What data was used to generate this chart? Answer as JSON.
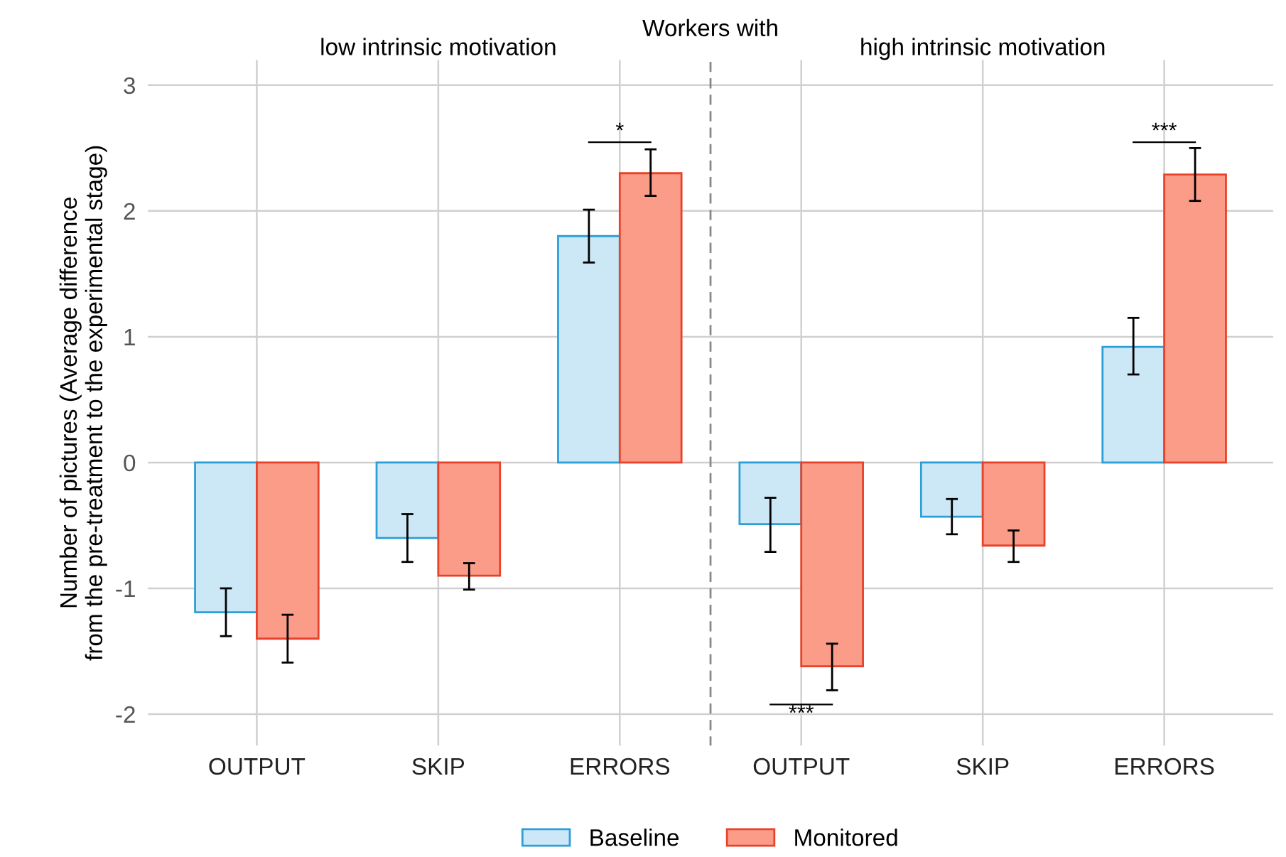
{
  "chart_data": {
    "type": "bar",
    "title": "Workers with",
    "ylabel": "Number of pictures (Average difference\nfrom the pre-treatment to the experimental stage)",
    "categories": [
      "OUTPUT",
      "SKIP",
      "ERRORS",
      "OUTPUT",
      "SKIP",
      "ERRORS"
    ],
    "series": [
      {
        "name": "Baseline",
        "color": "#cce7f5",
        "values": [
          -1.19,
          -0.6,
          1.8,
          -0.49,
          -0.43,
          0.92
        ],
        "errors": [
          [
            -1.38,
            -1.0
          ],
          [
            -0.79,
            -0.41
          ],
          [
            1.59,
            2.01
          ],
          [
            -0.71,
            -0.28
          ],
          [
            -0.57,
            -0.29
          ],
          [
            0.7,
            1.15
          ]
        ]
      },
      {
        "name": "Monitored",
        "color": "#fa9c88",
        "values": [
          -1.4,
          -0.9,
          2.3,
          -1.62,
          -0.66,
          2.29
        ],
        "errors": [
          [
            -1.59,
            -1.21
          ],
          [
            -1.01,
            -0.8
          ],
          [
            2.12,
            2.49
          ],
          [
            -1.81,
            -1.44
          ],
          [
            -0.79,
            -0.54
          ],
          [
            2.08,
            2.5
          ]
        ]
      }
    ],
    "ylim": [
      -2.25,
      3.2
    ],
    "yticks": [
      -2,
      -1,
      0,
      1,
      2,
      3
    ],
    "grid": true,
    "legend": "bottom",
    "annotations": [
      "low intrinsic motivation",
      "high intrinsic motivation",
      "*",
      "***",
      "***"
    ]
  }
}
